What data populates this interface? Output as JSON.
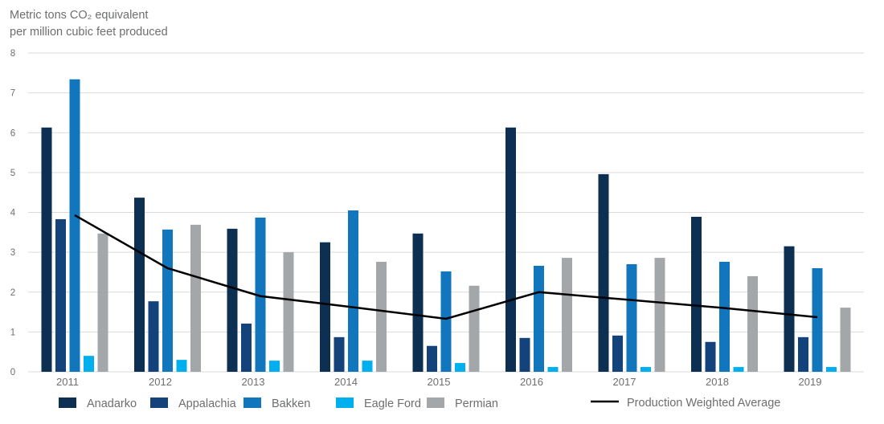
{
  "chart_data": {
    "type": "bar",
    "ylabel": "Metric tons CO₂ equivalent\nper million cubic feet produced",
    "ylabel_lines": [
      "Metric tons CO₂ equivalent",
      "per million cubic feet produced"
    ],
    "ylim": [
      0,
      8
    ],
    "yticks": [
      "0",
      "1",
      "2",
      "3",
      "4",
      "5",
      "6",
      "7",
      "8"
    ],
    "grid": true,
    "legend_position": "bottom",
    "categories": [
      "2011",
      "2012",
      "2013",
      "2014",
      "2015",
      "2016",
      "2017",
      "2018",
      "2019"
    ],
    "series": [
      {
        "name": "Anadarko",
        "color": "#0d2f52",
        "values": [
          6.13,
          4.37,
          3.59,
          3.25,
          3.47,
          6.13,
          4.96,
          3.89,
          3.15
        ]
      },
      {
        "name": "Appalachia",
        "color": "#13437a",
        "values": [
          3.83,
          1.77,
          1.21,
          0.87,
          0.65,
          0.85,
          0.91,
          0.75,
          0.87
        ]
      },
      {
        "name": "Bakken",
        "color": "#1176bc",
        "values": [
          7.34,
          3.57,
          3.87,
          4.05,
          2.52,
          2.66,
          2.7,
          2.76,
          2.6
        ]
      },
      {
        "name": "Eagle Ford",
        "color": "#00b0ee",
        "values": [
          0.4,
          0.3,
          0.28,
          0.28,
          0.22,
          0.12,
          0.12,
          0.12,
          0.12
        ]
      },
      {
        "name": "Permian",
        "color": "#a4a7a9",
        "values": [
          3.47,
          3.69,
          3.0,
          2.76,
          2.16,
          2.86,
          2.86,
          2.4,
          1.61
        ]
      }
    ],
    "line_series": {
      "name": "Production Weighted Average",
      "color": "#000000",
      "values": [
        3.93,
        2.6,
        1.9,
        1.62,
        1.33,
        2.0,
        1.8,
        1.6,
        1.37
      ]
    }
  }
}
